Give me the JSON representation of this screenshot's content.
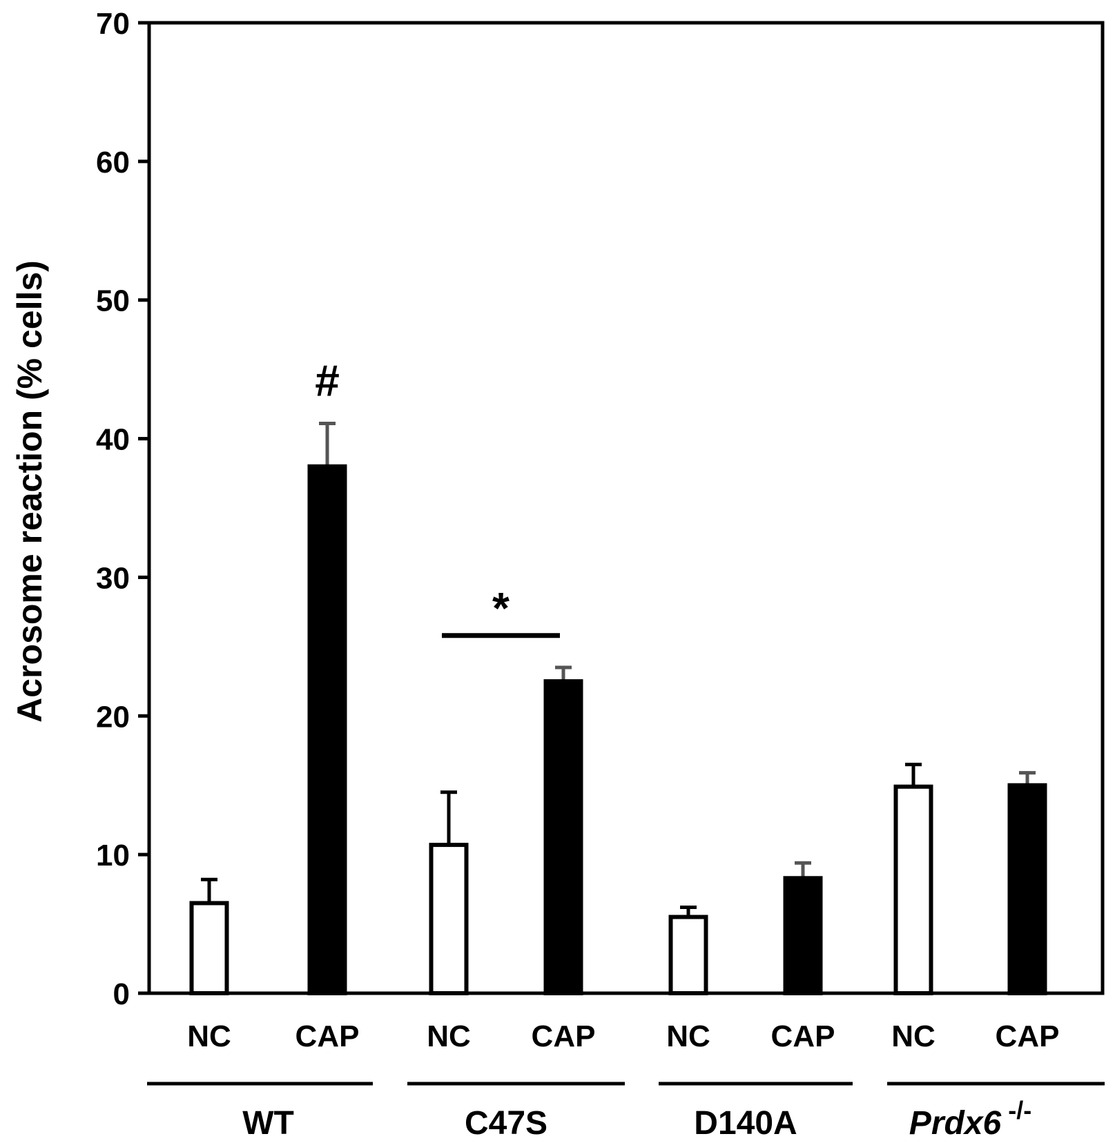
{
  "chart_data": {
    "type": "bar",
    "title": "",
    "xlabel": "",
    "ylabel": "Acrosome reaction (% cells)",
    "ylim": [
      0,
      70
    ],
    "yticks": [
      0,
      10,
      20,
      30,
      40,
      50,
      60,
      70
    ],
    "grid": false,
    "groups": [
      {
        "label": "WT",
        "italic": false,
        "superscript": "",
        "bars": [
          {
            "condition": "NC",
            "value": 6.5,
            "error": 1.7,
            "fill": "#ffffff"
          },
          {
            "condition": "CAP",
            "value": 38.0,
            "error": 3.1,
            "fill": "#000000"
          }
        ]
      },
      {
        "label": "C47S",
        "italic": false,
        "superscript": "",
        "bars": [
          {
            "condition": "NC",
            "value": 10.7,
            "error": 3.8,
            "fill": "#ffffff"
          },
          {
            "condition": "CAP",
            "value": 22.5,
            "error": 1.0,
            "fill": "#000000"
          }
        ]
      },
      {
        "label": "D140A",
        "italic": false,
        "superscript": "",
        "bars": [
          {
            "condition": "NC",
            "value": 5.5,
            "error": 0.7,
            "fill": "#ffffff"
          },
          {
            "condition": "CAP",
            "value": 8.3,
            "error": 1.1,
            "fill": "#000000"
          }
        ]
      },
      {
        "label": "Prdx6",
        "italic": true,
        "superscript": "-/-",
        "bars": [
          {
            "condition": "NC",
            "value": 14.9,
            "error": 1.6,
            "fill": "#ffffff"
          },
          {
            "condition": "CAP",
            "value": 15.0,
            "error": 0.9,
            "fill": "#000000"
          }
        ]
      }
    ],
    "annotations": [
      {
        "text": "#",
        "group": 0,
        "bar": 1,
        "meaning": "marker above WT CAP bar"
      },
      {
        "text": "*",
        "group": 1,
        "bracket": [
          0,
          1
        ],
        "bracket_value": 25.8
      }
    ]
  }
}
